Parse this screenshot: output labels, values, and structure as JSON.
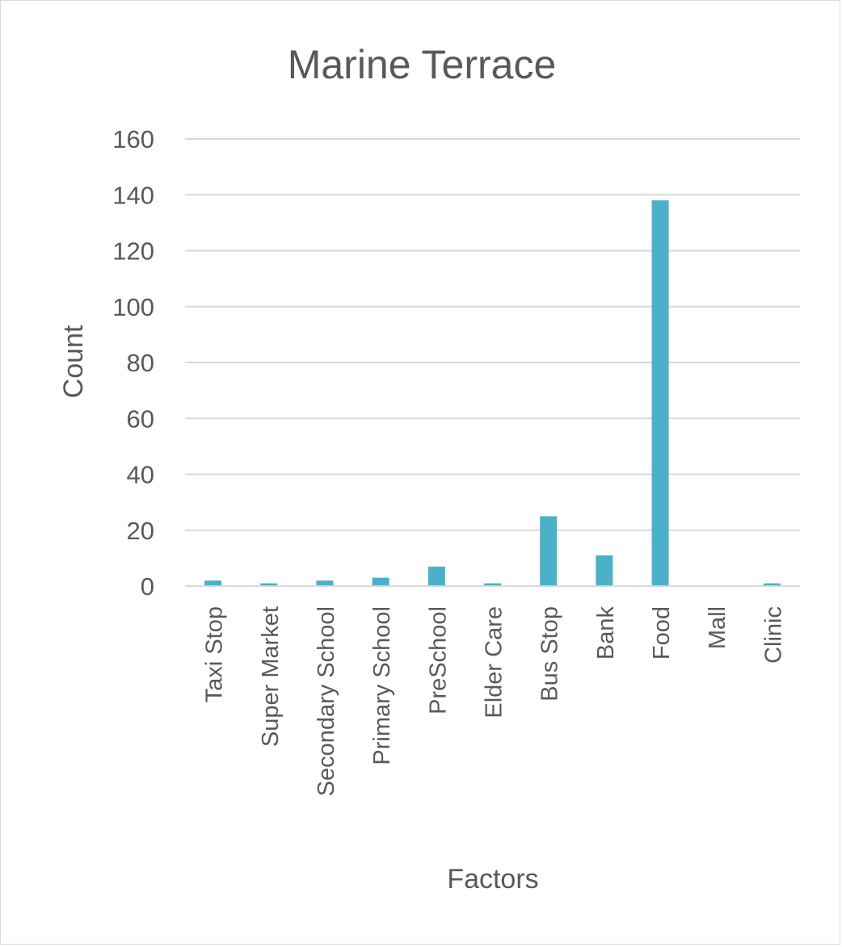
{
  "chart_data": {
    "type": "bar",
    "title": "Marine Terrace",
    "xlabel": "Factors",
    "ylabel": "Count",
    "ylim": [
      0,
      160
    ],
    "yticks": [
      0,
      20,
      40,
      60,
      80,
      100,
      120,
      140,
      160
    ],
    "grid": true,
    "legend": "none",
    "categories": [
      "Taxi Stop",
      "Super Market",
      "Secondary School",
      "Primary School",
      "PreSchool",
      "Elder Care",
      "Bus Stop",
      "Bank",
      "Food",
      "Mall",
      "Clinic"
    ],
    "values": [
      2,
      1,
      2,
      3,
      7,
      1,
      25,
      11,
      138,
      0,
      1
    ],
    "colors": {
      "bar": "#4BB1C9",
      "grid": "#d9d9d9",
      "text": "#595959"
    }
  }
}
